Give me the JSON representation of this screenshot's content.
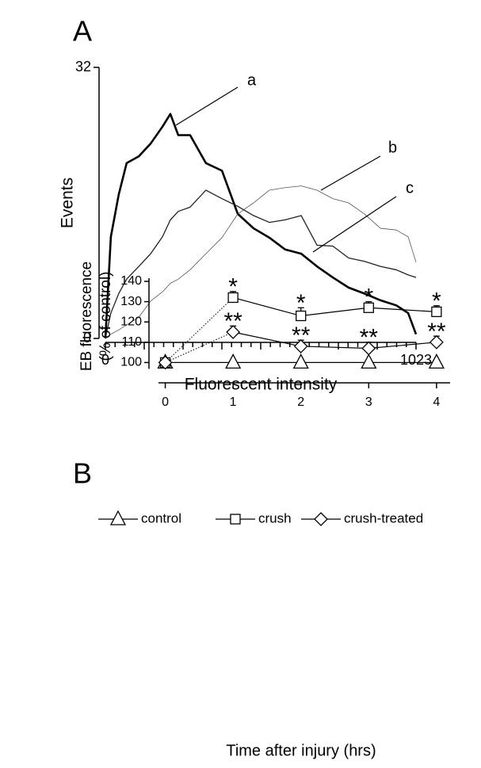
{
  "chart_data": [
    {
      "type": "line",
      "panel": "A",
      "xlabel": "Fluorescent intensity",
      "ylabel": "Events",
      "x": [
        0,
        18,
        44,
        70,
        110,
        149,
        188,
        214,
        240,
        279,
        331,
        384,
        436,
        488,
        540,
        592,
        645,
        697,
        749,
        801,
        853,
        906,
        958,
        997,
        1023
      ],
      "series": [
        {
          "name": "a",
          "color": "#000000",
          "values": [
            0,
            12,
            17,
            20.7,
            21.5,
            23,
            25,
            26.5,
            24,
            24,
            20.7,
            19.8,
            14.7,
            13,
            11.9,
            10.5,
            10,
            8.5,
            7.2,
            6,
            5.3,
            4.5,
            3.9,
            3,
            0.5
          ]
        },
        {
          "name": "b",
          "color": "#555555",
          "values": [
            0,
            0.5,
            1,
            1.6,
            2.5,
            4.4,
            5.5,
            6.5,
            7,
            8.1,
            10,
            11.9,
            14.7,
            16,
            17.5,
            17.8,
            18,
            17.5,
            16.5,
            16,
            14.7,
            13,
            12.8,
            12,
            9
          ]
        },
        {
          "name": "c",
          "color": "#222222",
          "values": [
            0,
            3,
            5.3,
            7,
            8.5,
            10,
            12,
            14,
            15,
            15.5,
            17.5,
            16.5,
            15.6,
            14.5,
            13.7,
            14,
            14.5,
            11,
            10.9,
            9.5,
            9.1,
            8.5,
            8.1,
            7.5,
            7.2
          ]
        }
      ],
      "xlim": [
        0,
        1023
      ],
      "xticks": [
        0,
        1023
      ],
      "ylim": [
        0,
        32
      ],
      "yticks": [
        0,
        32
      ]
    },
    {
      "type": "line",
      "panel": "B",
      "xlabel": "Time after injury (hrs)",
      "ylabel": [
        "EB  fluorescence",
        "(% of control)"
      ],
      "x": [
        0,
        1,
        2,
        3,
        4
      ],
      "series": [
        {
          "name": "control",
          "marker": "triangle",
          "color": "#000000",
          "values": [
            100,
            100,
            100,
            100,
            100
          ]
        },
        {
          "name": "crush",
          "marker": "square",
          "color": "#000000",
          "values": [
            100,
            132,
            123,
            127,
            125
          ],
          "errors": [
            0,
            3,
            4,
            3,
            3
          ],
          "significance": [
            null,
            "*",
            "*",
            "*",
            "*"
          ],
          "dotted_segments": [
            0
          ]
        },
        {
          "name": "crush-treated",
          "marker": "diamond",
          "color": "#000000",
          "values": [
            100,
            115,
            108,
            107,
            110
          ],
          "errors": [
            0,
            3,
            3,
            3,
            3
          ],
          "significance": [
            null,
            "**",
            "**",
            "**",
            "**"
          ],
          "dotted_segments": [
            0
          ]
        }
      ],
      "xlim": [
        -0.1,
        4.2
      ],
      "xticks": [
        0,
        1,
        2,
        3,
        4
      ],
      "ylim": [
        90,
        140
      ],
      "yticks": [
        100,
        110,
        120,
        130,
        140
      ],
      "legend": "top"
    }
  ]
}
